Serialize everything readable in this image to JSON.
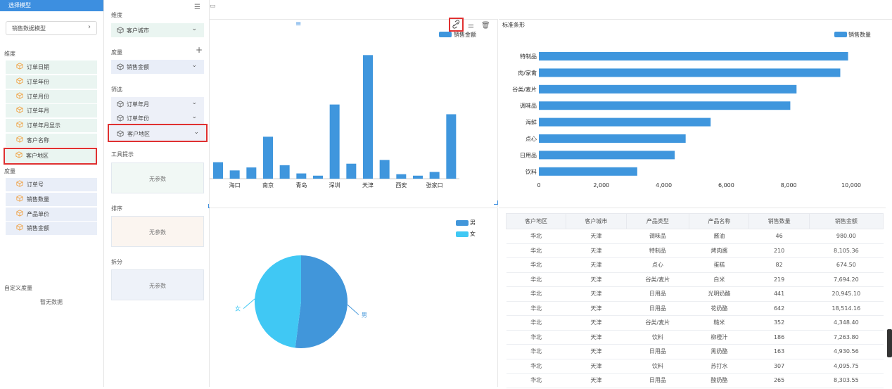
{
  "left_panel": {
    "header": "选择模型",
    "model_select": "销售数据模型",
    "dimension_title": "维度",
    "dimensions": [
      "订单日期",
      "订单年份",
      "订单月份",
      "订单年月",
      "订单年月显示",
      "客户名称",
      "客户地区"
    ],
    "measure_title": "度量",
    "measures": [
      "订单号",
      "销售数量",
      "产品单价",
      "销售金额"
    ],
    "custom_measure_title": "自定义度量",
    "custom_measure_empty": "暂无数据"
  },
  "config_panel": {
    "dimension_title": "维度",
    "dimension_field": "客户城市",
    "measure_title": "度量",
    "measure_field": "销售金额",
    "filter_title": "筛选",
    "filters": [
      "订单年月",
      "订单年份",
      "客户地区"
    ],
    "tooltip_title": "工具提示",
    "tooltip_empty": "无参数",
    "sort_title": "排序",
    "sort_empty": "无参数",
    "split_title": "拆分",
    "split_empty": "无参数"
  },
  "colors": {
    "accent": "#3d8fe0",
    "bar": "#3f96dd",
    "pie_male": "#4196da",
    "pie_female": "#40c8f4",
    "highlight": "#e03131"
  },
  "icons": {
    "link": "link-icon",
    "settings": "sliders-icon",
    "delete": "trash-icon",
    "menu": "list-icon"
  },
  "chart_data": [
    {
      "type": "bar",
      "legend": [
        "销售金额"
      ],
      "categories": [
        "",
        "海口",
        "",
        "南京",
        "",
        "青岛",
        "",
        "深圳",
        "",
        "天津",
        "",
        "西安",
        "",
        "张家口",
        ""
      ],
      "x_tick_labels": [
        "海口",
        "南京",
        "青岛",
        "深圳",
        "天津",
        "西安",
        "张家口"
      ],
      "values": [
        22,
        11,
        15,
        56,
        18,
        7,
        4,
        99,
        20,
        165,
        25,
        6,
        4,
        9,
        86
      ]
    },
    {
      "type": "bar",
      "orientation": "horizontal",
      "title": "标准条形",
      "legend": [
        "销售数量"
      ],
      "categories": [
        "特制品",
        "肉/家禽",
        "谷类/麦片",
        "调味品",
        "海鲜",
        "点心",
        "日用品",
        "饮料"
      ],
      "values": [
        9900,
        9650,
        8250,
        8050,
        5500,
        4700,
        4350,
        3150
      ],
      "xlim": [
        0,
        10000
      ],
      "x_ticks": [
        "0",
        "2,000",
        "4,000",
        "6,000",
        "8,000",
        "10,000"
      ]
    },
    {
      "type": "pie",
      "legend": [
        "男",
        "女"
      ],
      "slices": [
        {
          "name": "男",
          "value": 52
        },
        {
          "name": "女",
          "value": 48
        }
      ]
    },
    {
      "type": "table",
      "columns": [
        "客户地区",
        "客户城市",
        "产品类型",
        "产品名称",
        "销售数量",
        "销售金额"
      ],
      "rows": [
        [
          "华北",
          "天津",
          "调味品",
          "酱油",
          "46",
          "980.00"
        ],
        [
          "华北",
          "天津",
          "特制品",
          "烤肉酱",
          "210",
          "8,105.36"
        ],
        [
          "华北",
          "天津",
          "点心",
          "蛋糕",
          "82",
          "674.50"
        ],
        [
          "华北",
          "天津",
          "谷类/麦片",
          "白米",
          "219",
          "7,694.20"
        ],
        [
          "华北",
          "天津",
          "日用品",
          "光明奶酪",
          "441",
          "20,945.10"
        ],
        [
          "华北",
          "天津",
          "日用品",
          "花奶酪",
          "642",
          "18,514.16"
        ],
        [
          "华北",
          "天津",
          "谷类/麦片",
          "糙米",
          "352",
          "4,348.40"
        ],
        [
          "华北",
          "天津",
          "饮料",
          "柳橙汁",
          "186",
          "7,263.80"
        ],
        [
          "华北",
          "天津",
          "日用品",
          "黑奶酪",
          "163",
          "4,930.56"
        ],
        [
          "华北",
          "天津",
          "饮料",
          "苏打水",
          "307",
          "4,095.75"
        ],
        [
          "华北",
          "天津",
          "日用品",
          "酸奶酪",
          "265",
          "8,303.55"
        ]
      ]
    }
  ]
}
